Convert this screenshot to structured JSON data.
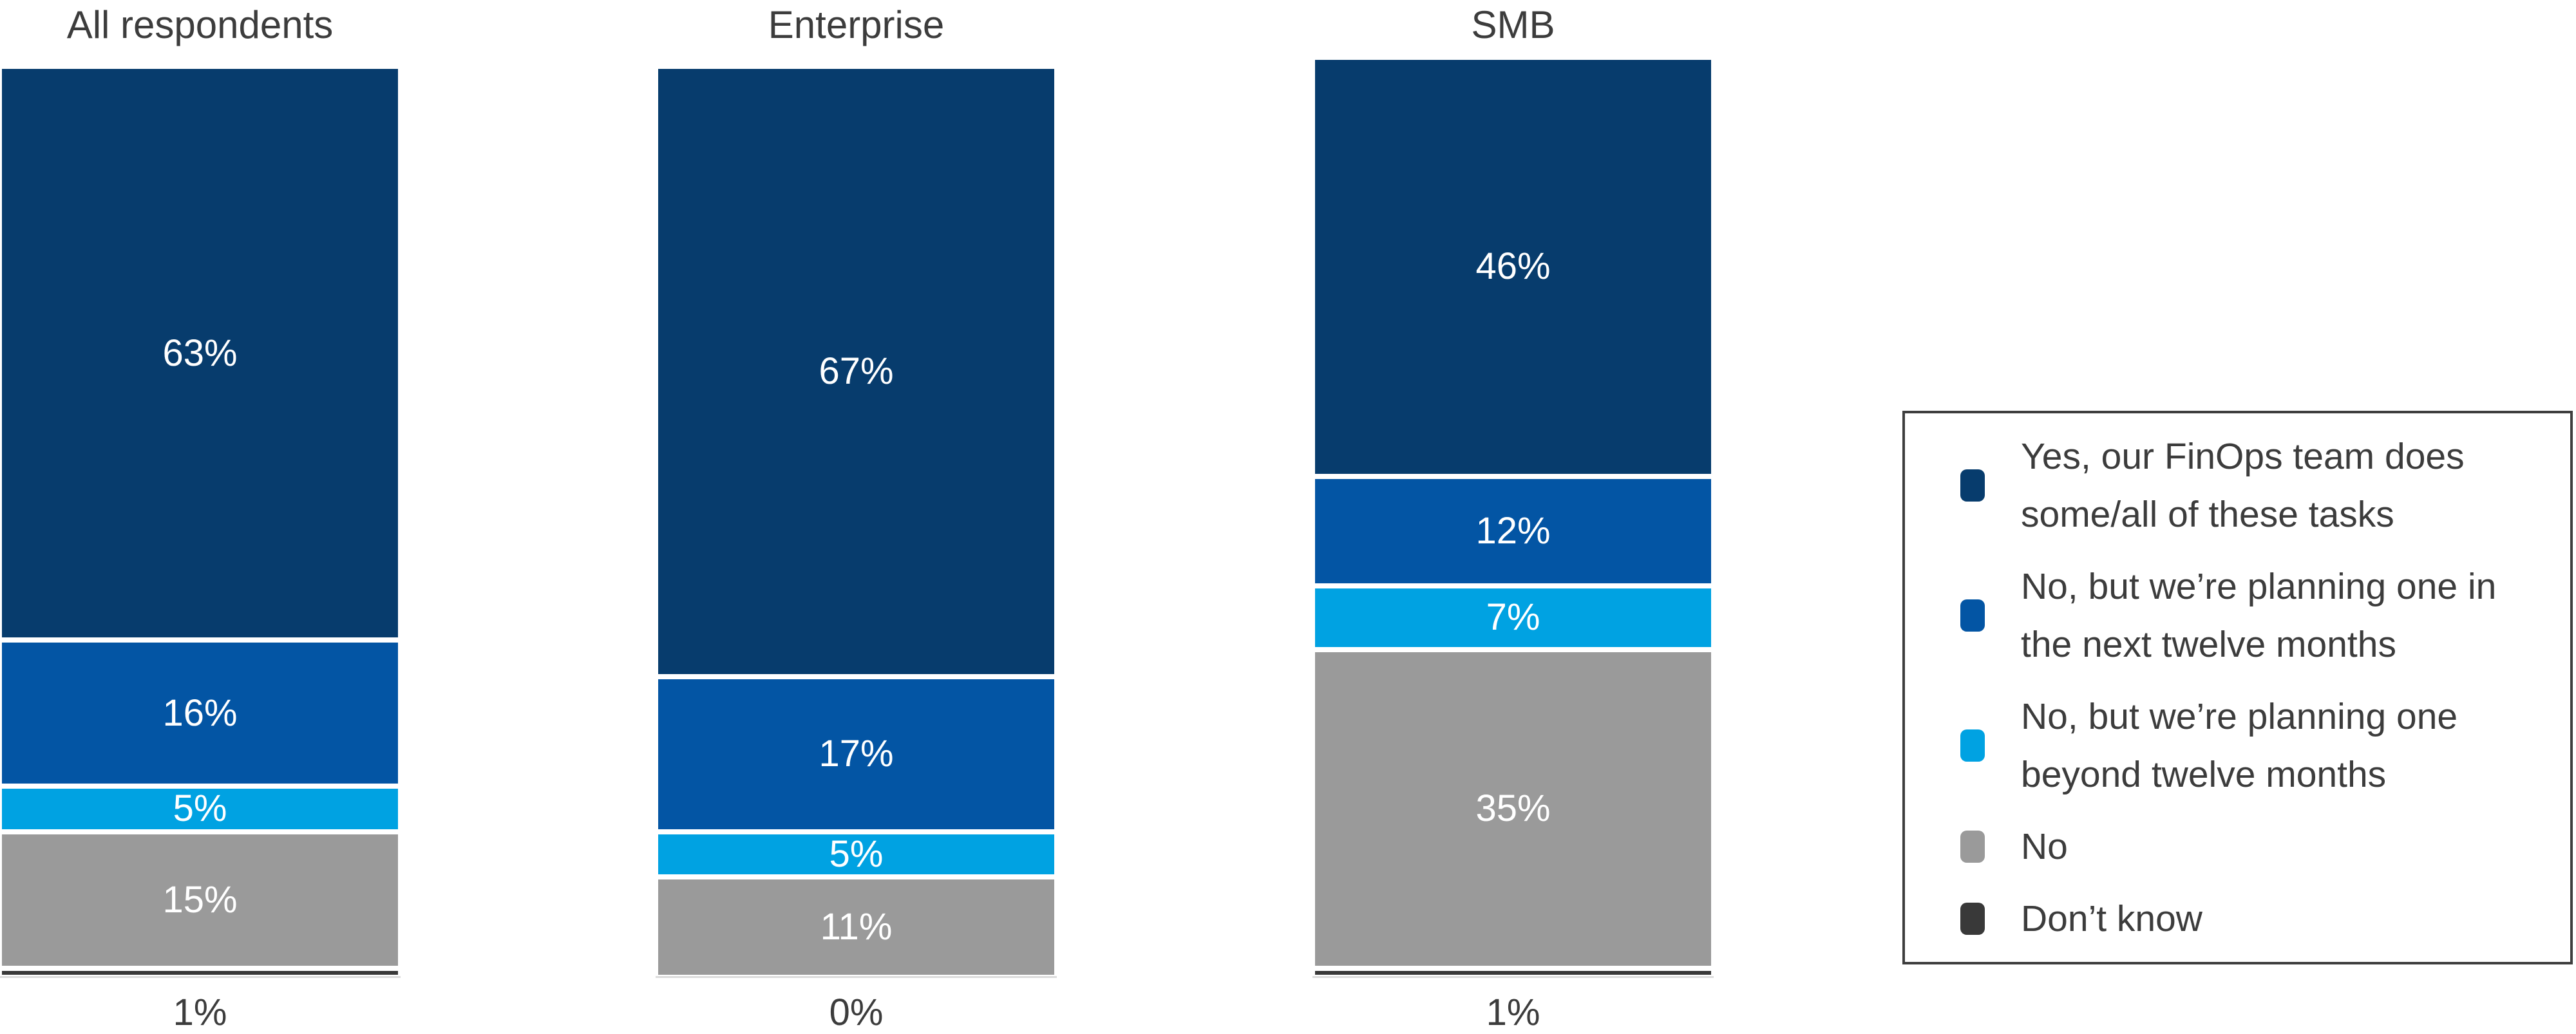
{
  "chart_data": {
    "type": "bar",
    "stacked": true,
    "orientation": "vertical",
    "unit": "%",
    "categories": [
      "All respondents",
      "Enterprise",
      "SMB"
    ],
    "series": [
      {
        "name": "Yes, our FinOps team does some/all of these tasks",
        "color": "#073c6d",
        "values": [
          63,
          67,
          46
        ],
        "labels": [
          "63%",
          "67%",
          "46%"
        ]
      },
      {
        "name": "No, but we’re planning one in the next twelve months",
        "color": "#0355a4",
        "values": [
          16,
          17,
          12
        ],
        "labels": [
          "16%",
          "17%",
          "12%"
        ]
      },
      {
        "name": "No, but we’re planning one beyond twelve months",
        "color": "#00a2e2",
        "values": [
          5,
          5,
          7
        ],
        "labels": [
          "5%",
          "5%",
          "7%"
        ]
      },
      {
        "name": "No",
        "color": "#9a9a9a",
        "values": [
          15,
          11,
          35
        ],
        "labels": [
          "15%",
          "11%",
          "35%"
        ]
      },
      {
        "name": "Don’t know",
        "color": "#393939",
        "values": [
          1,
          0,
          1
        ],
        "labels": [
          "1%",
          "0%",
          "1%"
        ],
        "label_position": "below_axis"
      }
    ],
    "below_axis_labels": [
      "1%",
      "0%",
      "1%"
    ],
    "legend_position": "right",
    "gridlines": false,
    "value_axis": "hidden",
    "text_color": "#3c3c3c",
    "axis_line_color": "#dcdcdc",
    "bar_label_min_value_shown": 5
  }
}
